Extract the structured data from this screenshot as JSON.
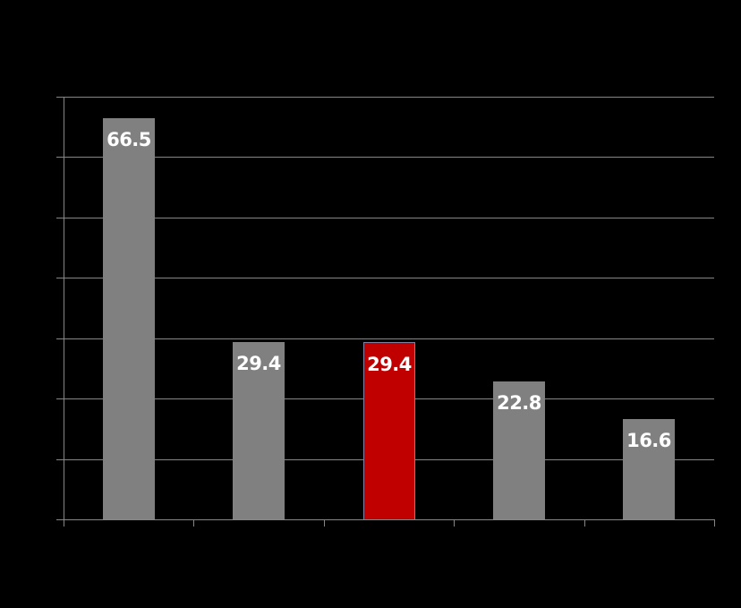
{
  "chart_data": {
    "type": "bar",
    "title": "",
    "xlabel": "",
    "ylabel": "",
    "categories": [
      "",
      "",
      "",
      "",
      ""
    ],
    "values": [
      66.5,
      29.4,
      29.4,
      22.8,
      16.6
    ],
    "value_labels": [
      "66.5",
      "29.4",
      "29.4",
      "22.8",
      "16.6"
    ],
    "highlight_index": 2,
    "ylim": [
      0,
      70
    ],
    "y_gridlines": [
      0,
      10,
      20,
      30,
      40,
      50,
      60,
      70
    ],
    "grid": true,
    "legend": null,
    "colors": {
      "background": "#000000",
      "bar_default": "#808080",
      "bar_highlight": "#C00000",
      "bar_highlight_border": "#8080A0",
      "gridline": "#868686",
      "label_text": "#FFFFFF"
    }
  }
}
